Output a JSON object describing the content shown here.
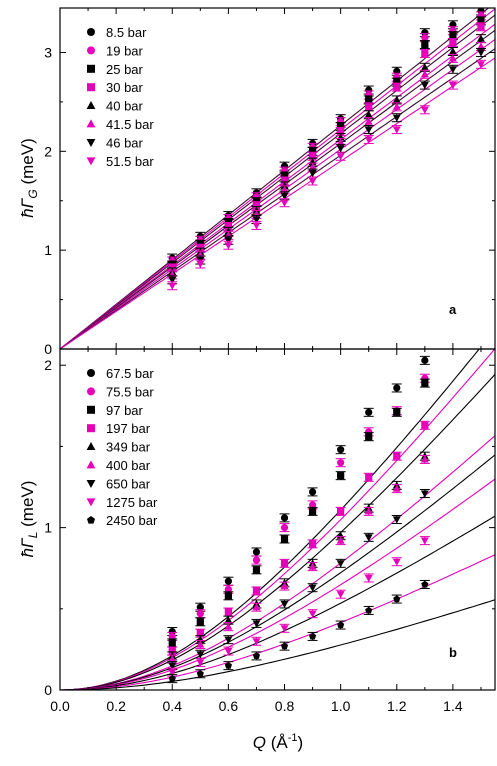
{
  "colors": {
    "black": "#000000",
    "magenta": "#e600b8",
    "fit_dark": "#3a0a30"
  },
  "chart_data": [
    {
      "type": "scatter",
      "panel_label": "a",
      "ylabel_main": "ħΓ",
      "ylabel_sub": "G",
      "ylabel_unit": " (meV)",
      "xlim": [
        0.0,
        1.55
      ],
      "ylim": [
        0,
        3.45
      ],
      "yticks": [
        "0",
        "1",
        "2",
        "3"
      ],
      "ytick_values": [
        0,
        1,
        2,
        3
      ],
      "grid": false,
      "legend_position": "top-left",
      "x": [
        0.4,
        0.5,
        0.6,
        0.7,
        0.8,
        0.9,
        1.0,
        1.1,
        1.2,
        1.3,
        1.4,
        1.5
      ],
      "fits": [
        {
          "slope": 2.26
        },
        {
          "slope": 2.22
        },
        {
          "slope": 2.18
        },
        {
          "slope": 2.12
        },
        {
          "slope": 2.08
        },
        {
          "slope": 2.02
        },
        {
          "slope": 1.96
        },
        {
          "slope": 1.9
        }
      ],
      "series": [
        {
          "name": "8.5 bar",
          "marker": "circle",
          "color": "#000000",
          "values": [
            0.92,
            1.14,
            1.35,
            1.58,
            1.85,
            2.08,
            2.33,
            2.62,
            2.81,
            3.2,
            3.28,
            3.42
          ]
        },
        {
          "name": "19 bar",
          "marker": "circle",
          "color": "#e600b8",
          "values": [
            0.89,
            1.1,
            1.32,
            1.54,
            1.8,
            2.04,
            2.3,
            2.57,
            2.75,
            3.15,
            3.22,
            3.37
          ]
        },
        {
          "name": "25 bar",
          "marker": "square",
          "color": "#000000",
          "values": [
            0.85,
            1.06,
            1.28,
            1.49,
            1.75,
            2.0,
            2.25,
            2.52,
            2.7,
            3.08,
            3.17,
            3.32
          ]
        },
        {
          "name": "30 bar",
          "marker": "square",
          "color": "#e600b8",
          "values": [
            0.82,
            1.02,
            1.24,
            1.45,
            1.7,
            1.95,
            2.2,
            2.45,
            2.65,
            2.99,
            3.1,
            3.26
          ]
        },
        {
          "name": "40 bar",
          "marker": "triangle-up",
          "color": "#000000",
          "values": [
            0.78,
            0.98,
            1.19,
            1.4,
            1.65,
            1.89,
            2.14,
            2.37,
            2.52,
            2.85,
            3.01,
            3.14
          ]
        },
        {
          "name": "41.5 bar",
          "marker": "triangle-up",
          "color": "#e600b8",
          "values": [
            0.75,
            0.95,
            1.15,
            1.36,
            1.61,
            1.84,
            2.09,
            2.3,
            2.45,
            2.78,
            2.94,
            3.06
          ]
        },
        {
          "name": "46 bar",
          "marker": "triangle-down",
          "color": "#000000",
          "values": [
            0.7,
            0.9,
            1.1,
            1.31,
            1.55,
            1.78,
            2.03,
            2.22,
            2.34,
            2.67,
            2.83,
            3.0
          ]
        },
        {
          "name": "51.5 bar",
          "marker": "triangle-down",
          "color": "#e600b8",
          "values": [
            0.64,
            0.86,
            1.05,
            1.25,
            1.48,
            1.7,
            1.95,
            2.12,
            2.22,
            2.42,
            2.67,
            2.88
          ]
        }
      ]
    },
    {
      "type": "scatter",
      "panel_label": "b",
      "ylabel_main": "ħΓ",
      "ylabel_sub": "L",
      "ylabel_unit": " (meV)",
      "xlabel_main": "Q",
      "xlabel_unit": " (Å",
      "xlabel_sup": "-1",
      "xlabel_close": ")",
      "xlim": [
        0.0,
        1.55
      ],
      "ylim": [
        0,
        2.1
      ],
      "xticks": [
        "0.0",
        "0.2",
        "0.4",
        "0.6",
        "0.8",
        "1.0",
        "1.2",
        "1.4"
      ],
      "xtick_values": [
        0.0,
        0.2,
        0.4,
        0.6,
        0.8,
        1.0,
        1.2,
        1.4
      ],
      "yticks": [
        "0",
        "1",
        "2"
      ],
      "ytick_values": [
        0,
        1,
        2
      ],
      "grid": false,
      "legend_position": "top-left",
      "x": [
        0.4,
        0.5,
        0.6,
        0.7,
        0.8,
        0.9,
        1.0,
        1.1,
        1.2,
        1.3
      ],
      "fits": [
        {
          "a": 2.24,
          "k": 0.9,
          "color": "#000000"
        },
        {
          "a": 2.12,
          "k": 0.9,
          "color": "#e600b8"
        },
        {
          "a": 1.96,
          "k": 0.9,
          "color": "#000000"
        },
        {
          "a": 1.58,
          "k": 0.9,
          "color": "#e600b8"
        },
        {
          "a": 1.46,
          "k": 0.9,
          "color": "#000000"
        },
        {
          "a": 1.31,
          "k": 0.9,
          "color": "#e600b8"
        },
        {
          "a": 1.08,
          "k": 0.9,
          "color": "#000000"
        },
        {
          "a": 0.84,
          "k": 0.9,
          "color": "#e600b8"
        },
        {
          "a": 0.56,
          "k": 0.9,
          "color": "#000000"
        }
      ],
      "series": [
        {
          "name": "67.5 bar",
          "marker": "circle",
          "color": "#000000",
          "values": [
            0.36,
            0.51,
            0.67,
            0.85,
            1.06,
            1.22,
            1.48,
            1.71,
            1.86,
            2.03
          ]
        },
        {
          "name": "75.5 bar",
          "marker": "circle",
          "color": "#e600b8",
          "values": [
            0.33,
            0.47,
            0.62,
            0.8,
            1.0,
            1.14,
            1.4,
            1.59,
            1.72,
            1.92
          ]
        },
        {
          "name": "97 bar",
          "marker": "square",
          "color": "#000000",
          "values": [
            0.29,
            0.42,
            0.58,
            0.74,
            0.93,
            1.1,
            1.32,
            1.56,
            1.71,
            1.89
          ]
        },
        {
          "name": "197 bar",
          "marker": "square",
          "color": "#e600b8",
          "values": [
            0.24,
            0.35,
            0.48,
            0.61,
            0.78,
            0.9,
            1.1,
            1.31,
            1.44,
            1.63
          ]
        },
        {
          "name": "349 bar",
          "marker": "triangle-up",
          "color": "#000000",
          "values": [
            0.21,
            0.31,
            0.43,
            0.53,
            0.66,
            0.78,
            0.95,
            1.12,
            1.26,
            1.44
          ]
        },
        {
          "name": "400 bar",
          "marker": "triangle-up",
          "color": "#e600b8",
          "values": [
            0.19,
            0.28,
            0.39,
            0.51,
            0.64,
            0.76,
            0.92,
            1.1,
            1.24,
            1.42
          ]
        },
        {
          "name": "650 bar",
          "marker": "triangle-down",
          "color": "#000000",
          "values": [
            0.15,
            0.22,
            0.31,
            0.41,
            0.53,
            0.63,
            0.78,
            0.94,
            1.05,
            1.21
          ]
        },
        {
          "name": "1275 bar",
          "marker": "triangle-down",
          "color": "#e600b8",
          "values": [
            0.11,
            0.17,
            0.24,
            0.3,
            0.38,
            0.47,
            0.59,
            0.69,
            0.79,
            0.92
          ]
        },
        {
          "name": "2450 bar",
          "marker": "pentagon",
          "color": "#000000",
          "values": [
            0.07,
            0.1,
            0.15,
            0.21,
            0.27,
            0.33,
            0.4,
            0.49,
            0.56,
            0.65
          ]
        }
      ]
    }
  ]
}
